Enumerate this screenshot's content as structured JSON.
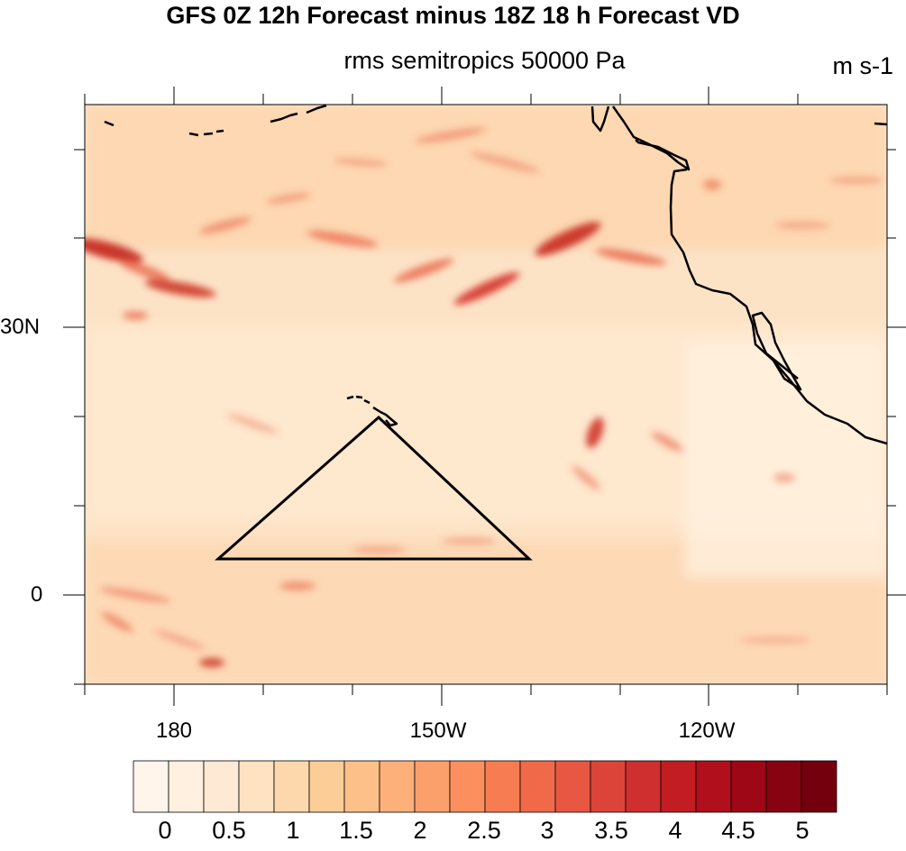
{
  "header": {
    "title": "GFS 0Z 12h Forecast minus 18Z 18 h Forecast VD",
    "subtitle": "rms semitropics 50000 Pa",
    "units": "m s-1"
  },
  "map": {
    "y_axis_labels": [
      "30N",
      "0"
    ],
    "x_axis_labels": [
      "180",
      "150W",
      "120W"
    ],
    "region": "North-East Pacific, Hawaii to North America west coast",
    "lat_range": [
      -10,
      55
    ],
    "lon_range": [
      171,
      261
    ]
  },
  "colorbar": {
    "labels": [
      "0",
      "0.5",
      "1",
      "1.5",
      "2",
      "2.5",
      "3",
      "3.5",
      "4",
      "4.5",
      "5"
    ],
    "colors": [
      "#fff5eb",
      "#fff0df",
      "#feead4",
      "#fee2c2",
      "#fed8ad",
      "#fdcd97",
      "#fdc089",
      "#fdb07a",
      "#fca06b",
      "#fb8f5e",
      "#f77c51",
      "#f06a49",
      "#e75742",
      "#dc443a",
      "#d02f2f",
      "#c21d23",
      "#b10f1b",
      "#9d0716",
      "#880311",
      "#73000c"
    ]
  }
}
